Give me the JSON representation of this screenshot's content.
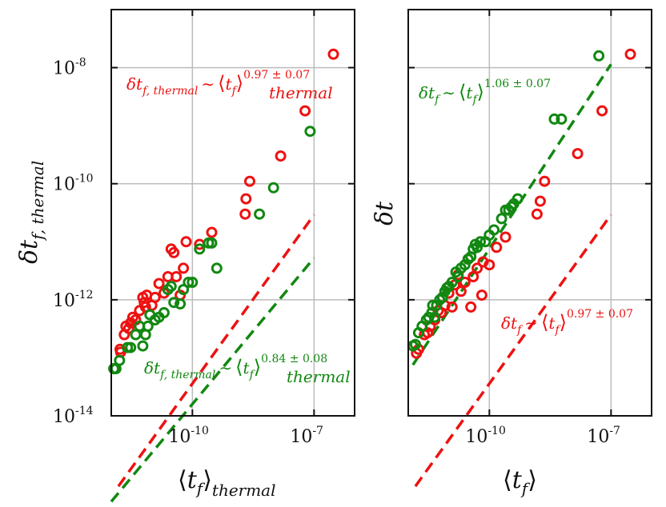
{
  "chart_data": [
    {
      "type": "scatter",
      "xscale": "log",
      "yscale": "log",
      "xlim": [
        1e-12,
        1e-06
      ],
      "ylim": [
        1e-14,
        1e-07
      ],
      "xticks": [
        {
          "value": 1e-10,
          "base": "10",
          "exp": "-10"
        },
        {
          "value": 1e-07,
          "base": "10",
          "exp": "-7"
        }
      ],
      "yticks": [
        {
          "value": 1e-14,
          "base": "10",
          "exp": "-14"
        },
        {
          "value": 1e-12,
          "base": "10",
          "exp": "-12"
        },
        {
          "value": 1e-10,
          "base": "10",
          "exp": "-10"
        },
        {
          "value": 1e-08,
          "base": "10",
          "exp": "-8"
        }
      ],
      "grid": true,
      "xlabel": "⟨t_f⟩_thermal",
      "ylabel": "δt_f,thermal",
      "series": [
        {
          "color": "#ee1111",
          "points": [
            [
              1.65e-12,
              1.4e-13
            ],
            [
              1.7e-12,
              1.25e-13
            ],
            [
              2.1e-12,
              2.5e-13
            ],
            [
              2.3e-12,
              3.5e-13
            ],
            [
              2.7e-12,
              3.2e-13
            ],
            [
              3e-12,
              4e-13
            ],
            [
              3.4e-12,
              5e-13
            ],
            [
              4e-12,
              4.5e-13
            ],
            [
              5e-12,
              6.5e-13
            ],
            [
              6e-12,
              1.1e-12
            ],
            [
              6.5e-12,
              9e-13
            ],
            [
              7e-12,
              7.5e-13
            ],
            [
              7.5e-12,
              1.2e-12
            ],
            [
              1e-11,
              8e-13
            ],
            [
              1.2e-11,
              1.1e-12
            ],
            [
              1.5e-11,
              1.9e-12
            ],
            [
              2e-11,
              1.3e-12
            ],
            [
              2.5e-11,
              2.5e-12
            ],
            [
              3e-11,
              7.5e-12
            ],
            [
              3.5e-11,
              6.5e-12
            ],
            [
              4e-11,
              2.5e-12
            ],
            [
              5e-11,
              1.2e-12
            ],
            [
              6e-11,
              3.5e-12
            ],
            [
              7e-11,
              1e-11
            ],
            [
              1.5e-10,
              9e-12
            ],
            [
              3e-10,
              1.45e-11
            ],
            [
              2e-09,
              3e-11
            ],
            [
              2.1e-09,
              5.5e-11
            ],
            [
              2.6e-09,
              1.1e-10
            ],
            [
              1.5e-08,
              3e-10
            ],
            [
              6e-08,
              1.8e-09
            ],
            [
              3e-07,
              1.7e-08
            ]
          ]
        },
        {
          "color": "#118811",
          "points": [
            [
              1.15e-12,
              6.5e-14
            ],
            [
              1.3e-12,
              6.5e-14
            ],
            [
              1.6e-12,
              9e-14
            ],
            [
              2.5e-12,
              1.5e-13
            ],
            [
              3e-12,
              1.5e-13
            ],
            [
              4e-12,
              2.5e-13
            ],
            [
              5e-12,
              3.5e-13
            ],
            [
              6e-12,
              1.6e-13
            ],
            [
              7e-12,
              2.5e-13
            ],
            [
              8e-12,
              3.5e-13
            ],
            [
              9e-12,
              5.5e-13
            ],
            [
              1.2e-11,
              4.5e-13
            ],
            [
              1.5e-11,
              5e-13
            ],
            [
              2e-11,
              6e-13
            ],
            [
              2.5e-11,
              1.5e-12
            ],
            [
              3e-11,
              1.7e-12
            ],
            [
              3.5e-11,
              9e-13
            ],
            [
              5e-11,
              8.5e-13
            ],
            [
              6e-11,
              1.5e-12
            ],
            [
              8e-11,
              2e-12
            ],
            [
              1e-10,
              2e-12
            ],
            [
              1.5e-10,
              7.5e-12
            ],
            [
              2.5e-10,
              9.5e-12
            ],
            [
              3e-10,
              9.5e-12
            ],
            [
              4e-10,
              3.5e-12
            ],
            [
              4.5e-09,
              3e-11
            ],
            [
              1e-08,
              8.5e-11
            ],
            [
              8e-08,
              8e-10
            ]
          ]
        }
      ],
      "fits": [
        {
          "color": "#ee1111",
          "a": 0.00018,
          "b": 0.97,
          "x": [
            1.5e-12,
            1e-07
          ]
        },
        {
          "color": "#118811",
          "a": 4e-06,
          "b": 0.84,
          "x": [
            1e-12,
            1e-07
          ]
        }
      ],
      "annotations": [
        {
          "color": "#ee1111",
          "base": "δt",
          "sub": "f, thermal",
          "op": "∼",
          "angle_base": "t",
          "angle_sub": "f",
          "outer_sub": "thermal",
          "exponent": "0.97 ± 0.07"
        },
        {
          "color": "#118811",
          "base": "δt",
          "sub": "f, thermal",
          "op": "∼",
          "angle_base": "t",
          "angle_sub": "f",
          "outer_sub": "thermal",
          "exponent": "0.84 ± 0.08"
        }
      ]
    },
    {
      "type": "scatter",
      "xscale": "log",
      "yscale": "log",
      "xlim": [
        1e-12,
        1e-06
      ],
      "ylim": [
        1e-14,
        1e-07
      ],
      "xticks": [
        {
          "value": 1e-10,
          "base": "10",
          "exp": "-10"
        },
        {
          "value": 1e-07,
          "base": "10",
          "exp": "-7"
        }
      ],
      "grid": true,
      "xlabel": "⟨t_f⟩",
      "ylabel": "δt",
      "series": [
        {
          "color": "#ee1111",
          "points": [
            [
              1.6e-12,
              1.2e-13
            ],
            [
              1.8e-12,
              1.4e-13
            ],
            [
              2.5e-12,
              2.5e-13
            ],
            [
              3e-12,
              2.7e-13
            ],
            [
              3.5e-12,
              3.5e-13
            ],
            [
              4.5e-12,
              4.5e-13
            ],
            [
              5.5e-12,
              6.5e-13
            ],
            [
              6.5e-12,
              6e-13
            ],
            [
              7e-12,
              1.1e-12
            ],
            [
              8e-12,
              8e-13
            ],
            [
              1e-11,
              1.3e-12
            ],
            [
              1.2e-11,
              7.5e-13
            ],
            [
              1.4e-11,
              1.8e-12
            ],
            [
              1.7e-11,
              2.7e-12
            ],
            [
              2e-11,
              1.4e-12
            ],
            [
              2.5e-11,
              2e-12
            ],
            [
              3e-11,
              5e-12
            ],
            [
              3.5e-11,
              7.5e-13
            ],
            [
              4e-11,
              2.5e-12
            ],
            [
              5e-11,
              3.5e-12
            ],
            [
              6.5e-11,
              1.2e-12
            ],
            [
              7e-11,
              4.5e-12
            ],
            [
              1e-10,
              4e-12
            ],
            [
              1.5e-10,
              8e-12
            ],
            [
              2.5e-10,
              1.2e-11
            ],
            [
              1.5e-09,
              3e-11
            ],
            [
              1.8e-09,
              5e-11
            ],
            [
              2.3e-09,
              1.1e-10
            ],
            [
              1.5e-08,
              3.3e-10
            ],
            [
              6e-08,
              1.8e-09
            ],
            [
              3e-07,
              1.7e-08
            ]
          ]
        },
        {
          "color": "#118811",
          "points": [
            [
              1.3e-12,
              1.6e-13
            ],
            [
              1.5e-12,
              1.7e-13
            ],
            [
              1.8e-12,
              2.7e-13
            ],
            [
              2.2e-12,
              3.5e-13
            ],
            [
              2.8e-12,
              4.5e-13
            ],
            [
              3.2e-12,
              5e-13
            ],
            [
              3.8e-12,
              6e-13
            ],
            [
              4e-12,
              8e-13
            ],
            [
              4.5e-12,
              5e-13
            ],
            [
              5e-12,
              8e-13
            ],
            [
              6e-12,
              1e-12
            ],
            [
              7e-12,
              1.1e-12
            ],
            [
              8e-12,
              1.4e-12
            ],
            [
              9e-12,
              1.6e-12
            ],
            [
              1e-11,
              1.7e-12
            ],
            [
              1.2e-11,
              2e-12
            ],
            [
              1.5e-11,
              3e-12
            ],
            [
              1.7e-11,
              2.5e-12
            ],
            [
              2e-11,
              3.5e-12
            ],
            [
              2.5e-11,
              4e-12
            ],
            [
              3e-11,
              5e-12
            ],
            [
              3.5e-11,
              5.5e-12
            ],
            [
              4e-11,
              7.5e-12
            ],
            [
              4.5e-11,
              9e-12
            ],
            [
              5e-11,
              8e-12
            ],
            [
              6e-11,
              1e-11
            ],
            [
              8e-11,
              1e-11
            ],
            [
              1e-10,
              1.3e-11
            ],
            [
              1.3e-10,
              1.6e-11
            ],
            [
              2e-10,
              2.5e-11
            ],
            [
              3e-10,
              3.5e-11
            ],
            [
              3.5e-10,
              4e-11
            ],
            [
              4e-10,
              4.5e-11
            ],
            [
              5e-10,
              5.5e-11
            ],
            [
              6e-09,
              1.3e-09
            ],
            [
              5e-08,
              1.6e-08
            ],
            [
              4e-09,
              1.3e-09
            ],
            [
              2.5e-10,
              3.5e-11
            ]
          ]
        }
      ],
      "fits": [
        {
          "color": "#118811",
          "a": 0.3,
          "b": 1.06,
          "x": [
            1.3e-12,
            1e-07
          ]
        },
        {
          "color": "#ee1111",
          "a": 0.00018,
          "b": 0.97,
          "x": [
            1.5e-12,
            1e-07
          ]
        }
      ],
      "annotations": [
        {
          "color": "#118811",
          "base": "δt",
          "sub": "f",
          "op": "∼",
          "angle_base": "t",
          "angle_sub": "f",
          "outer_sub": "",
          "exponent": "1.06 ± 0.07"
        },
        {
          "color": "#ee1111",
          "base": "δt",
          "sub": "f",
          "op": "∼",
          "angle_base": "t",
          "angle_sub": "f",
          "outer_sub": "",
          "exponent": "0.97 ± 0.07"
        }
      ]
    }
  ],
  "labels": {
    "left_x": {
      "angle_open": "⟨",
      "base": "t",
      "sub": "f",
      "angle_close": "⟩",
      "outer_sub": "thermal"
    },
    "left_y": {
      "base": "δt",
      "sub": "f, thermal"
    },
    "right_x": {
      "angle_open": "⟨",
      "base": "t",
      "sub": "f",
      "angle_close": "⟩"
    },
    "right_y": {
      "base": "δt"
    }
  }
}
